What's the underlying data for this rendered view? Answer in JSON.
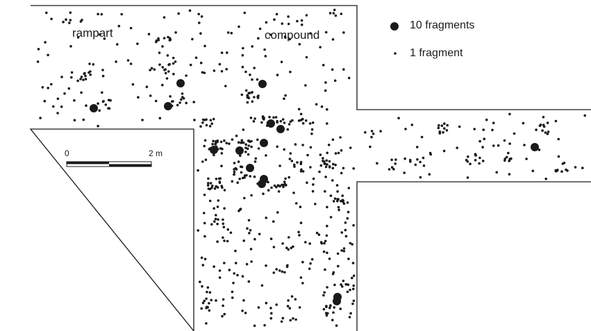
{
  "map": {
    "areas": {
      "rampart_label": "rampart",
      "compound_label": "compound"
    },
    "legend": {
      "large_marker_label": "10 fragments",
      "small_marker_label": "1 fragment"
    },
    "scale_bar": {
      "start_label": "0",
      "end_label": "2 m"
    },
    "colors": {
      "ink": "#1a1a1a",
      "background": "#ffffff"
    }
  }
}
